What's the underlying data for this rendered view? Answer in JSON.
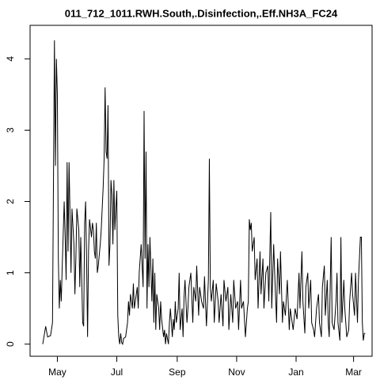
{
  "chart_data": {
    "type": "line",
    "title": "011_712_1011.RWH.South,.Disinfection,.Eff.NH3A_FC24",
    "color": "#000000",
    "xlim": [
      -28,
      323
    ],
    "ylim": [
      -0.17,
      4.47
    ],
    "yticks": [
      0,
      1,
      2,
      3,
      4
    ],
    "xticks": [
      {
        "value": 0,
        "label": "May"
      },
      {
        "value": 61,
        "label": "Jul"
      },
      {
        "value": 123,
        "label": "Sep"
      },
      {
        "value": 184,
        "label": "Nov"
      },
      {
        "value": 245,
        "label": "Jan"
      },
      {
        "value": 304,
        "label": "Mar"
      }
    ],
    "x": [
      -15,
      -12,
      -10,
      -7,
      -5,
      -3,
      -2,
      -1,
      0,
      1,
      2,
      3,
      4,
      5,
      7,
      8,
      9,
      10,
      11,
      12,
      13,
      14,
      15,
      17,
      18,
      19,
      20,
      22,
      23,
      24,
      26,
      27,
      28,
      29,
      30,
      31,
      32,
      33,
      35,
      36,
      37,
      38,
      39,
      40,
      41,
      42,
      44,
      45,
      47,
      48,
      49,
      50,
      51,
      52,
      53,
      54,
      55,
      56,
      57,
      58,
      59,
      60,
      61,
      62,
      63,
      64,
      65,
      66,
      67,
      68,
      70,
      72,
      73,
      74,
      75,
      77,
      78,
      79,
      80,
      82,
      83,
      84,
      86,
      88,
      89,
      90,
      91,
      92,
      93,
      94,
      95,
      97,
      98,
      99,
      100,
      101,
      102,
      104,
      105,
      106,
      107,
      109,
      110,
      111,
      112,
      114,
      115,
      116,
      118,
      119,
      120,
      121,
      122,
      124,
      125,
      126,
      128,
      129,
      130,
      131,
      133,
      134,
      135,
      137,
      139,
      140,
      142,
      143,
      145,
      146,
      148,
      150,
      151,
      152,
      153,
      155,
      156,
      157,
      158,
      160,
      161,
      163,
      165,
      166,
      168,
      170,
      171,
      173,
      175,
      176,
      178,
      180,
      181,
      183,
      185,
      186,
      188,
      189,
      191,
      193,
      195,
      196,
      197,
      198,
      199,
      200,
      202,
      203,
      205,
      206,
      208,
      209,
      211,
      212,
      214,
      216,
      217,
      219,
      220,
      222,
      223,
      225,
      226,
      228,
      229,
      231,
      232,
      234,
      236,
      238,
      239,
      241,
      242,
      244,
      246,
      248,
      249,
      251,
      252,
      254,
      255,
      257,
      258,
      260,
      261,
      263,
      264,
      266,
      268,
      269,
      271,
      272,
      274,
      275,
      277,
      278,
      279,
      281,
      282,
      284,
      286,
      287,
      288,
      290,
      291,
      292,
      294,
      295,
      297,
      299,
      300,
      302,
      303,
      305,
      306,
      308,
      309,
      311,
      312,
      313,
      314,
      315,
      316
    ],
    "values": [
      0,
      0.25,
      0.1,
      0.12,
      0.3,
      4.26,
      2.5,
      4.0,
      3.5,
      1.2,
      0.5,
      0.9,
      0.6,
      1.1,
      2.0,
      1.5,
      0.9,
      2.55,
      1.3,
      2.55,
      1.8,
      1.0,
      1.9,
      1.4,
      0.7,
      1.2,
      1.9,
      1.6,
      0.8,
      1.5,
      0.3,
      0.25,
      1.7,
      2.0,
      1.2,
      0.1,
      1.3,
      1.75,
      1.5,
      1.7,
      1.6,
      1.3,
      1.2,
      1.7,
      1.0,
      1.1,
      1.4,
      1.6,
      2.2,
      2.6,
      3.6,
      2.7,
      2.6,
      3.35,
      1.1,
      1.4,
      2.3,
      2.1,
      1.4,
      2.3,
      1.6,
      1.9,
      2.15,
      0.4,
      0.1,
      0,
      0.15,
      0.02,
      0,
      0.08,
      0.1,
      0.3,
      0.6,
      0.4,
      0.7,
      0.5,
      0.85,
      0.5,
      0.6,
      0.8,
      0.5,
      1.0,
      1.4,
      0.8,
      3.27,
      1.2,
      2.7,
      0.5,
      1.4,
      0.8,
      1.5,
      0.6,
      1.2,
      0.3,
      1.0,
      0.2,
      0.7,
      0.5,
      0.2,
      0.6,
      0.35,
      0.1,
      0.2,
      0.0,
      0.15,
      0.0,
      0.3,
      0.5,
      0.1,
      0.35,
      0.2,
      0.6,
      0.3,
      0.5,
      1.0,
      0.2,
      0.5,
      0.1,
      0.65,
      0.9,
      0.3,
      0.5,
      0.8,
      1.0,
      0.3,
      0.8,
      0.6,
      1.1,
      0.4,
      0.8,
      0.6,
      0.5,
      0.95,
      0.6,
      0.25,
      0.9,
      2.6,
      0.8,
      0.6,
      0.9,
      0.3,
      0.85,
      0.6,
      0.3,
      0.7,
      0.25,
      0.9,
      0.6,
      0.8,
      0.2,
      0.7,
      0.3,
      0.9,
      0.5,
      0.6,
      0.2,
      0.9,
      0.5,
      0.6,
      0.1,
      0.5,
      0.6,
      1.75,
      1.6,
      1.7,
      1.3,
      1.5,
      0.9,
      1.2,
      0.5,
      1.3,
      0.7,
      1.2,
      0.5,
      1.0,
      1.1,
      0.6,
      1.85,
      0.5,
      1.4,
      1.0,
      0.3,
      1.2,
      0.7,
      1.3,
      0.3,
      0.6,
      0.4,
      0.9,
      0.2,
      0.5,
      0.3,
      0.2,
      0.5,
      0.35,
      1.0,
      0.5,
      1.3,
      0.6,
      0.15,
      0.8,
      1.0,
      0.5,
      0.9,
      0.3,
      0.2,
      0.1,
      0.5,
      0.7,
      0.3,
      0.1,
      0.8,
      1.1,
      0.4,
      0.9,
      0.3,
      0.1,
      1.5,
      0.3,
      0.2,
      0.6,
      1.0,
      0.3,
      0.05,
      1.5,
      0.3,
      0.9,
      0.5,
      0.1,
      0.2,
      0.6,
      1.0,
      0.7,
      0.4,
      1.0,
      0.3,
      0.9,
      1.5,
      1.5,
      0.3,
      0.05,
      0.15,
      0.15
    ]
  }
}
